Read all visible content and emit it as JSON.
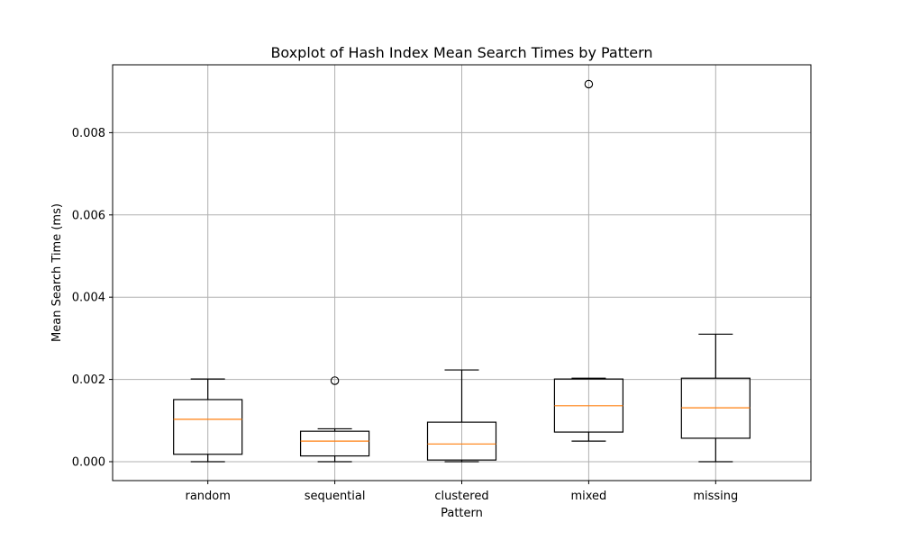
{
  "chart_data": {
    "type": "boxplot",
    "title": "Boxplot of Hash Index Mean Search Times by Pattern",
    "xlabel": "Pattern",
    "ylabel": "Mean Search Time (ms)",
    "ylim": [
      -0.00046,
      0.00965
    ],
    "yticks": [
      "0.000",
      "0.002",
      "0.004",
      "0.006",
      "0.008"
    ],
    "ytick_values": [
      0.0,
      0.002,
      0.004,
      0.006,
      0.008
    ],
    "grid": true,
    "categories": [
      "random",
      "sequential",
      "clustered",
      "mixed",
      "missing"
    ],
    "boxes": [
      {
        "category": "random",
        "whisker_low": 0.0,
        "q1": 0.00018,
        "median": 0.00103,
        "q3": 0.00151,
        "whisker_high": 0.00201,
        "outliers": []
      },
      {
        "category": "sequential",
        "whisker_low": 0.0,
        "q1": 0.00014,
        "median": 0.0005,
        "q3": 0.00074,
        "whisker_high": 0.0008,
        "outliers": [
          0.00197
        ]
      },
      {
        "category": "clustered",
        "whisker_low": 0.0,
        "q1": 4e-05,
        "median": 0.00043,
        "q3": 0.00096,
        "whisker_high": 0.00223,
        "outliers": []
      },
      {
        "category": "mixed",
        "whisker_low": 0.0005,
        "q1": 0.00072,
        "median": 0.00136,
        "q3": 0.00201,
        "whisker_high": 0.00203,
        "outliers": [
          0.00918
        ]
      },
      {
        "category": "missing",
        "whisker_low": 0.0,
        "q1": 0.00057,
        "median": 0.00131,
        "q3": 0.00203,
        "whisker_high": 0.0031,
        "outliers": []
      }
    ],
    "colors": {
      "box": "#000000",
      "median": "#ff7f0e",
      "grid": "#b0b0b0"
    }
  }
}
